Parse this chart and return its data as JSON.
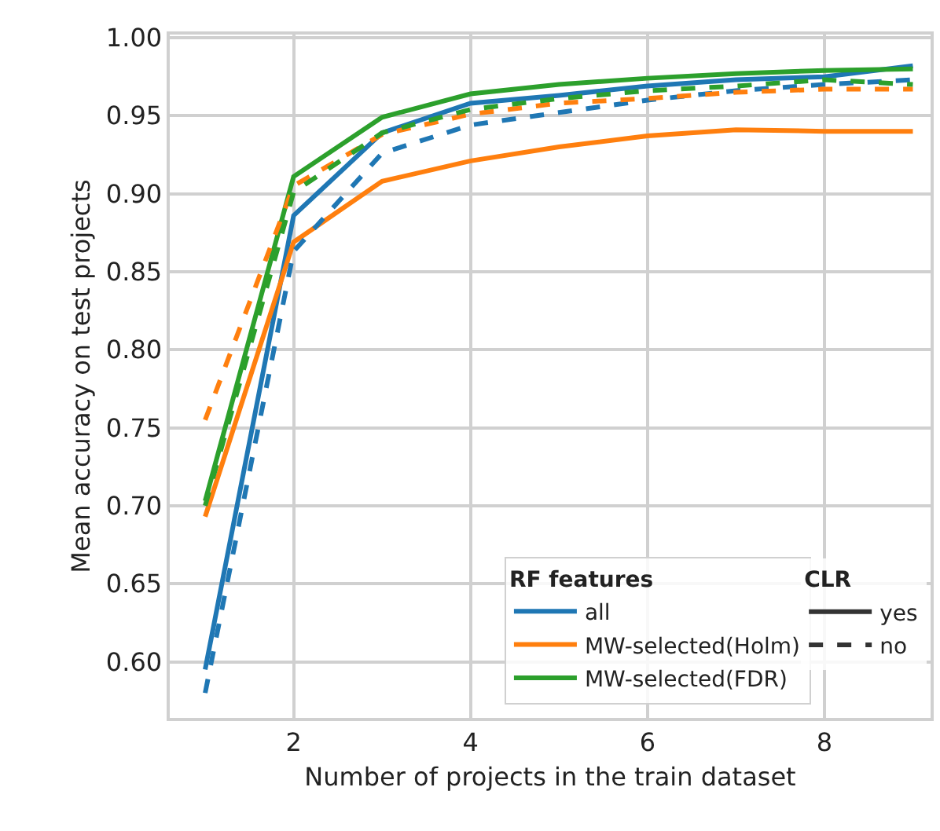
{
  "chart_data": {
    "type": "line",
    "xlabel": "Number of projects in the train dataset",
    "ylabel": "Mean accuracy on test projects",
    "x": [
      1,
      2,
      3,
      4,
      5,
      6,
      7,
      8,
      9
    ],
    "series": [
      {
        "name": "all",
        "color": "#1f77b4",
        "line_style": "solid",
        "values": [
          0.595,
          0.886,
          0.939,
          0.958,
          0.963,
          0.969,
          0.973,
          0.975,
          0.982
        ]
      },
      {
        "name": "MW-selected(Holm)",
        "color": "#ff7f0e",
        "line_style": "solid",
        "values": [
          0.693,
          0.869,
          0.908,
          0.921,
          0.93,
          0.937,
          0.941,
          0.94,
          0.94
        ]
      },
      {
        "name": "MW-selected(FDR)",
        "color": "#2ca02c",
        "line_style": "solid",
        "values": [
          0.703,
          0.911,
          0.949,
          0.964,
          0.97,
          0.974,
          0.977,
          0.979,
          0.98
        ]
      },
      {
        "color": "#1f77b4",
        "line_style": "dashed",
        "values": [
          0.58,
          0.863,
          0.926,
          0.944,
          0.952,
          0.96,
          0.966,
          0.97,
          0.973
        ]
      },
      {
        "color": "#ff7f0e",
        "line_style": "dashed",
        "values": [
          0.755,
          0.905,
          0.938,
          0.951,
          0.958,
          0.961,
          0.965,
          0.967,
          0.967
        ]
      },
      {
        "color": "#2ca02c",
        "line_style": "dashed",
        "values": [
          0.7,
          0.901,
          0.939,
          0.954,
          0.961,
          0.966,
          0.969,
          0.973,
          0.97
        ]
      }
    ],
    "legend_title": "RF features",
    "annotations": [
      "CLR",
      "yes",
      "no"
    ],
    "legend": "bottom right",
    "grid": true,
    "marker": "none",
    "xlim": [
      0.6,
      9.2
    ],
    "xticks": [
      2,
      4,
      6,
      8
    ],
    "ylim": [
      0.564,
      1.002
    ],
    "yticks": [
      {
        "value": 0.6,
        "label": "0.60"
      },
      {
        "value": 0.65,
        "label": "0.65"
      },
      {
        "value": 0.7,
        "label": "0.70"
      },
      {
        "value": 0.75,
        "label": "0.75"
      },
      {
        "value": 0.8,
        "label": "0.80"
      },
      {
        "value": 0.85,
        "label": "0.85"
      },
      {
        "value": 0.9,
        "label": "0.90"
      },
      {
        "value": 0.95,
        "label": "0.95"
      },
      {
        "value": 1.0,
        "label": "1.00"
      }
    ]
  }
}
